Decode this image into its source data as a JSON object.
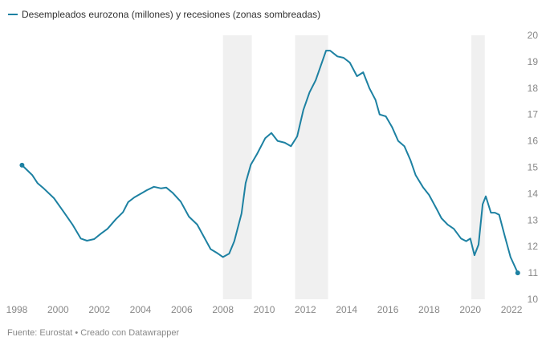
{
  "legend": {
    "label": "Desempleados eurozona (millones) y recesiones (zonas sombreadas)"
  },
  "source": "Fuente: Eurostat • Creado con Datawrapper",
  "chart_data": {
    "type": "line",
    "title": "Desempleados eurozona (millones) y recesiones (zonas sombreadas)",
    "xlabel": "",
    "ylabel": "",
    "xlim": [
      1998,
      2022.8
    ],
    "ylim": [
      10,
      20
    ],
    "x_ticks": [
      "1998",
      "2000",
      "2002",
      "2004",
      "2006",
      "2008",
      "2010",
      "2012",
      "2014",
      "2016",
      "2018",
      "2020",
      "2022"
    ],
    "y_ticks": [
      "10",
      "11",
      "12",
      "13",
      "14",
      "15",
      "16",
      "17",
      "18",
      "19",
      "20"
    ],
    "grid": false,
    "colors": {
      "line": "#1d81a2",
      "recession": "#f0f0f0"
    },
    "recessions": [
      [
        2008.0,
        2009.4
      ],
      [
        2011.5,
        2013.1
      ],
      [
        2020.05,
        2020.7
      ]
    ],
    "series": [
      {
        "name": "Desempleados eurozona (millones)",
        "x": [
          1998.25,
          1998.75,
          1999.0,
          1999.3,
          1999.8,
          2000.3,
          2000.7,
          2001.1,
          2001.4,
          2001.75,
          2002.1,
          2002.4,
          2002.8,
          2003.15,
          2003.4,
          2003.7,
          2004.1,
          2004.3,
          2004.65,
          2005.0,
          2005.25,
          2005.55,
          2005.95,
          2006.35,
          2006.75,
          2007.05,
          2007.4,
          2007.7,
          2008.0,
          2008.3,
          2008.55,
          2008.9,
          2009.1,
          2009.35,
          2009.65,
          2010.05,
          2010.35,
          2010.65,
          2011.0,
          2011.3,
          2011.6,
          2011.9,
          2012.2,
          2012.5,
          2012.8,
          2013.0,
          2013.2,
          2013.55,
          2013.85,
          2014.15,
          2014.5,
          2014.8,
          2015.1,
          2015.4,
          2015.6,
          2015.9,
          2016.2,
          2016.5,
          2016.8,
          2017.1,
          2017.35,
          2017.7,
          2018.0,
          2018.4,
          2018.6,
          2018.9,
          2019.2,
          2019.55,
          2019.8,
          2020.0,
          2020.2,
          2020.4,
          2020.6,
          2020.75,
          2021.0,
          2021.2,
          2021.4,
          2021.65,
          2021.95,
          2022.3
        ],
        "values": [
          15.08,
          14.7,
          14.4,
          14.2,
          13.83,
          13.28,
          12.83,
          12.3,
          12.22,
          12.28,
          12.5,
          12.67,
          13.03,
          13.3,
          13.68,
          13.86,
          14.04,
          14.13,
          14.26,
          14.2,
          14.23,
          14.04,
          13.7,
          13.13,
          12.83,
          12.4,
          11.9,
          11.76,
          11.6,
          11.73,
          12.2,
          13.25,
          14.4,
          15.1,
          15.5,
          16.1,
          16.3,
          16.0,
          15.93,
          15.8,
          16.17,
          17.17,
          17.84,
          18.3,
          18.97,
          19.42,
          19.42,
          19.2,
          19.15,
          18.97,
          18.45,
          18.6,
          18.0,
          17.55,
          17.0,
          16.93,
          16.53,
          16.0,
          15.8,
          15.26,
          14.7,
          14.25,
          13.95,
          13.37,
          13.07,
          12.83,
          12.67,
          12.3,
          12.2,
          12.3,
          11.67,
          12.07,
          13.6,
          13.9,
          13.28,
          13.28,
          13.2,
          12.46,
          11.6,
          11.0
        ]
      }
    ]
  }
}
